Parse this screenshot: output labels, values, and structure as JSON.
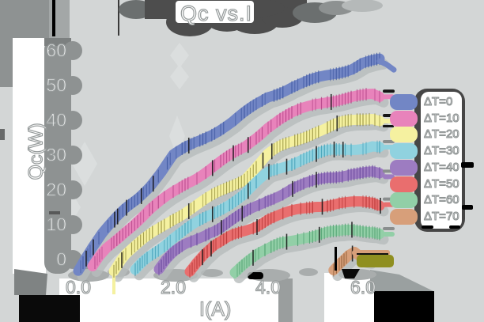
{
  "title": "Qc vs.I",
  "colors": {
    "background": "#d3d6d6",
    "shadow_dark": "#4d4d4d",
    "axis_band_gray": "#8e9292",
    "text": "#ffffff",
    "text_outline": "#979c9c",
    "olive_end_bar": "#8f8f20"
  },
  "chart_data": {
    "type": "line",
    "title": "Qc vs.I",
    "xlabel": "I(A)",
    "ylabel": "Qc(W)",
    "xlim": [
      -0.25,
      6.65
    ],
    "ylim": [
      -5.5,
      62
    ],
    "grid": false,
    "legend_position": "right",
    "x_ticks": [
      {
        "label": "0.0",
        "value": 0
      },
      {
        "label": "2.0",
        "value": 2
      },
      {
        "label": "4.0",
        "value": 4
      },
      {
        "label": "6.0",
        "value": 6
      }
    ],
    "y_ticks": [
      {
        "label": "0",
        "value": 0
      },
      {
        "label": "10",
        "value": 10
      },
      {
        "label": "20",
        "value": 20
      },
      {
        "label": "30",
        "value": 30
      },
      {
        "label": "40",
        "value": 40
      },
      {
        "label": "50",
        "value": 50
      },
      {
        "label": "60",
        "value": 60
      }
    ],
    "series": [
      {
        "name": "ΔT=0",
        "color": "#7286c5",
        "tick_color": "#3d56a0",
        "points": [
          [
            0,
            -2.5
          ],
          [
            0.15,
            1
          ],
          [
            0.3,
            4
          ],
          [
            0.5,
            7.5
          ],
          [
            0.75,
            11
          ],
          [
            1,
            14.5
          ],
          [
            1.25,
            17.5
          ],
          [
            1.5,
            21
          ],
          [
            1.75,
            25
          ],
          [
            2,
            29.5
          ],
          [
            2.25,
            31.5
          ],
          [
            2.5,
            33.5
          ],
          [
            2.75,
            35.5
          ],
          [
            3,
            37.5
          ],
          [
            3.25,
            39.5
          ],
          [
            3.5,
            42
          ],
          [
            3.75,
            44.5
          ],
          [
            4,
            47
          ],
          [
            4.25,
            48.5
          ],
          [
            4.5,
            50
          ],
          [
            4.75,
            51
          ],
          [
            5,
            52
          ],
          [
            5.25,
            53
          ],
          [
            5.5,
            54
          ],
          [
            5.75,
            55
          ],
          [
            6,
            56.5
          ],
          [
            6.35,
            57
          ]
        ],
        "tail": [
          [
            6.35,
            57
          ],
          [
            6.5,
            56
          ],
          [
            6.65,
            54.5
          ]
        ]
      },
      {
        "name": "ΔT=10",
        "color": "#e883bb",
        "tick_color": "#b03f84",
        "points": [
          [
            0.3,
            -2.5
          ],
          [
            0.45,
            0.5
          ],
          [
            0.6,
            3
          ],
          [
            0.75,
            5
          ],
          [
            1,
            8.5
          ],
          [
            1.25,
            11.5
          ],
          [
            1.5,
            14.5
          ],
          [
            1.75,
            17
          ],
          [
            2,
            19.5
          ],
          [
            2.25,
            22
          ],
          [
            2.5,
            24
          ],
          [
            2.75,
            26
          ],
          [
            3,
            28
          ],
          [
            3.25,
            30
          ],
          [
            3.5,
            32
          ],
          [
            3.75,
            35
          ],
          [
            4,
            38
          ],
          [
            4.25,
            40
          ],
          [
            4.5,
            41.5
          ],
          [
            4.75,
            43
          ],
          [
            5,
            44.5
          ],
          [
            5.25,
            45.5
          ],
          [
            5.5,
            46
          ],
          [
            5.75,
            46.5
          ],
          [
            6,
            47
          ],
          [
            6.2,
            47.5
          ],
          [
            6.35,
            47
          ]
        ]
      },
      {
        "name": "ΔT=20",
        "color": "#f5f1a0",
        "tick_color": "#8a8430",
        "points": [
          [
            0.75,
            -3
          ],
          [
            0.9,
            0
          ],
          [
            1,
            1.5
          ],
          [
            1.25,
            4
          ],
          [
            1.5,
            6.5
          ],
          [
            1.75,
            9
          ],
          [
            2,
            11.5
          ],
          [
            2.25,
            13.5
          ],
          [
            2.5,
            15.5
          ],
          [
            2.75,
            17.5
          ],
          [
            3,
            19.5
          ],
          [
            3.25,
            21.5
          ],
          [
            3.5,
            23.5
          ],
          [
            3.75,
            27
          ],
          [
            4,
            30.5
          ],
          [
            4.25,
            32.5
          ],
          [
            4.5,
            34
          ],
          [
            4.75,
            35.5
          ],
          [
            5,
            37
          ],
          [
            5.25,
            38
          ],
          [
            5.5,
            39
          ],
          [
            5.75,
            39.5
          ],
          [
            6,
            40
          ],
          [
            6.2,
            40.5
          ],
          [
            6.35,
            40
          ]
        ]
      },
      {
        "name": "ΔT=30",
        "color": "#90d2df",
        "tick_color": "#3d9db5",
        "points": [
          [
            1.2,
            -3
          ],
          [
            1.35,
            -0.5
          ],
          [
            1.5,
            1.5
          ],
          [
            1.75,
            4
          ],
          [
            2,
            6.5
          ],
          [
            2.25,
            8.5
          ],
          [
            2.5,
            10.5
          ],
          [
            2.75,
            12.5
          ],
          [
            3,
            14.5
          ],
          [
            3.25,
            16.5
          ],
          [
            3.5,
            18.5
          ],
          [
            3.75,
            21.5
          ],
          [
            4,
            24.5
          ],
          [
            4.25,
            26
          ],
          [
            4.5,
            27.5
          ],
          [
            4.75,
            29
          ],
          [
            5,
            30
          ],
          [
            5.25,
            31
          ],
          [
            5.5,
            31.5
          ],
          [
            5.75,
            32
          ],
          [
            6,
            32.5
          ],
          [
            6.2,
            33
          ],
          [
            6.35,
            32.5
          ]
        ]
      },
      {
        "name": "ΔT=40",
        "color": "#9d7cc1",
        "tick_color": "#64439a",
        "points": [
          [
            1.7,
            -3
          ],
          [
            1.85,
            -0.5
          ],
          [
            2,
            1.5
          ],
          [
            2.25,
            4
          ],
          [
            2.5,
            6
          ],
          [
            2.75,
            8
          ],
          [
            3,
            9.5
          ],
          [
            3.25,
            11.5
          ],
          [
            3.5,
            13.5
          ],
          [
            3.75,
            15.5
          ],
          [
            4,
            17.5
          ],
          [
            4.25,
            19
          ],
          [
            4.5,
            20.5
          ],
          [
            4.75,
            21.5
          ],
          [
            5,
            22.5
          ],
          [
            5.25,
            23.5
          ],
          [
            5.5,
            24
          ],
          [
            5.75,
            24.5
          ],
          [
            6,
            24.5
          ],
          [
            6.2,
            24.5
          ],
          [
            6.35,
            24
          ]
        ]
      },
      {
        "name": "ΔT=50",
        "color": "#e96e6e",
        "tick_color": "#b23030",
        "points": [
          [
            2.35,
            -3
          ],
          [
            2.5,
            -0.5
          ],
          [
            2.65,
            1.5
          ],
          [
            2.85,
            3.5
          ],
          [
            3,
            4.5
          ],
          [
            3.25,
            6.5
          ],
          [
            3.5,
            8
          ],
          [
            3.75,
            9.5
          ],
          [
            4,
            11.5
          ],
          [
            4.25,
            12.5
          ],
          [
            4.5,
            13.5
          ],
          [
            4.75,
            14.5
          ],
          [
            5,
            15.5
          ],
          [
            5.25,
            16
          ],
          [
            5.5,
            16.5
          ],
          [
            5.75,
            16.5
          ],
          [
            6,
            16.5
          ],
          [
            6.2,
            16.5
          ],
          [
            6.35,
            16
          ]
        ]
      },
      {
        "name": "ΔT=60",
        "color": "#92cfa7",
        "tick_color": "#4a9c6c",
        "points": [
          [
            3.3,
            -3
          ],
          [
            3.45,
            -1
          ],
          [
            3.6,
            0.5
          ],
          [
            3.8,
            2
          ],
          [
            4,
            3
          ],
          [
            4.25,
            4.5
          ],
          [
            4.5,
            5.5
          ],
          [
            4.75,
            6.5
          ],
          [
            5,
            7
          ],
          [
            5.25,
            7.5
          ],
          [
            5.5,
            7.5
          ],
          [
            5.75,
            8
          ],
          [
            6,
            8
          ],
          [
            6.2,
            8
          ],
          [
            6.35,
            7.5
          ]
        ]
      },
      {
        "name": "ΔT=70",
        "color": "#d79f7a",
        "tick_color": "#8a5a33",
        "points": [
          [
            5.38,
            -3
          ],
          [
            5.5,
            -1
          ],
          [
            5.6,
            0.5
          ],
          [
            5.7,
            2
          ],
          [
            5.82,
            3
          ],
          [
            5.95,
            1.5
          ],
          [
            6.1,
            0.8
          ]
        ]
      }
    ]
  }
}
